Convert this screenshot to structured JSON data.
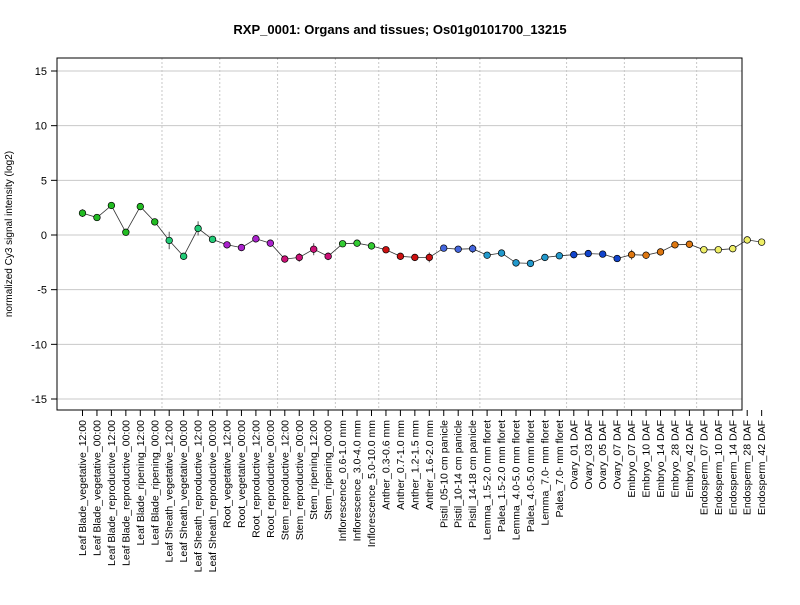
{
  "chart_data": {
    "type": "line",
    "title": "RXP_0001: Organs and tissues; Os01g0101700_13215",
    "ylabel": "normalized Cy3 signal intensity (log2)",
    "xlabel": "",
    "ylim": [
      -15,
      15
    ],
    "yticks": [
      -15,
      -10,
      -5,
      0,
      5,
      10,
      15
    ],
    "grid": {
      "horizontal": true,
      "vertical_group_separators": true
    },
    "categories": [
      "Leaf Blade_vegetative_12:00",
      "Leaf Blade_vegetative_00:00",
      "Leaf Blade_reproductive_12:00",
      "Leaf Blade_reproductive_00:00",
      "Leaf Blade_ripening_12:00",
      "Leaf Blade_ripening_00:00",
      "Leaf Sheath_vegetative_12:00",
      "Leaf Sheath_vegetative_00:00",
      "Leaf Sheath_reproductive_12:00",
      "Leaf Sheath_reproductive_00:00",
      "Root_vegetative_12:00",
      "Root_vegetative_00:00",
      "Root_reproductive_12:00",
      "Root_reproductive_00:00",
      "Stem_reproductive_12:00",
      "Stem_reproductive_00:00",
      "Stem_ripening_12:00",
      "Stem_ripening_00:00",
      "Inflorescence_0.6-1.0 mm",
      "Inflorescence_3.0-4.0 mm",
      "Inflorescence_5.0-10.0 mm",
      "Anther_0.3-0.6 mm",
      "Anther_0.7-1.0 mm",
      "Anther_1.2-1.5 mm",
      "Anther_1.6-2.0 mm",
      "Pistil_05-10 cm panicle",
      "Pistil_10-14 cm panicle",
      "Pistil_14-18 cm panicle",
      "Lemma_1.5-2.0 mm floret",
      "Palea_1.5-2.0 mm floret",
      "Lemma_4.0-5.0 mm floret",
      "Palea_4.0-5.0 mm floret",
      "Lemma_7.0- mm floret",
      "Palea_7.0- mm floret",
      "Ovary_01 DAF",
      "Ovary_03 DAF",
      "Ovary_05 DAF",
      "Ovary_07 DAF",
      "Embryo_07 DAF",
      "Embryo_10 DAF",
      "Embryo_14 DAF",
      "Embryo_28 DAF",
      "Embryo_42 DAF",
      "Endosperm_07 DAF",
      "Endosperm_10 DAF",
      "Endosperm_14 DAF",
      "Endosperm_28 DAF",
      "Endosperm_42 DAF"
    ],
    "values": [
      2.0,
      1.6,
      2.7,
      0.25,
      2.6,
      1.2,
      -0.5,
      -1.95,
      0.6,
      -0.4,
      -0.9,
      -1.15,
      -0.35,
      -0.75,
      -2.2,
      -2.05,
      -1.3,
      -1.95,
      -0.8,
      -0.75,
      -1.0,
      -1.35,
      -1.95,
      -2.05,
      -2.05,
      -1.2,
      -1.3,
      -1.25,
      -1.85,
      -1.65,
      -2.55,
      -2.6,
      -2.05,
      -1.9,
      -1.8,
      -1.7,
      -1.75,
      -2.15,
      -1.8,
      -1.85,
      -1.55,
      -0.9,
      -0.85,
      -1.35,
      -1.35,
      -1.25,
      -0.45,
      -0.65
    ],
    "errors": [
      0.35,
      0.3,
      0.25,
      0.2,
      0.3,
      0.25,
      0.8,
      0.3,
      0.65,
      0.25,
      0.15,
      0.15,
      0.25,
      0.15,
      0.3,
      0.4,
      0.55,
      0.35,
      0.15,
      0.15,
      0.15,
      0.2,
      0.15,
      0.15,
      0.45,
      0.2,
      0.2,
      0.4,
      0.25,
      0.25,
      0.35,
      0.2,
      0.2,
      0.15,
      0.3,
      0.2,
      0.15,
      0.2,
      0.45,
      0.35,
      0.2,
      0.2,
      0.2,
      0.15,
      0.15,
      0.15,
      0.25,
      0.15
    ],
    "colors": [
      "#22bb22",
      "#22bb22",
      "#22bb22",
      "#22bb22",
      "#22bb22",
      "#22bb22",
      "#22cc77",
      "#22cc77",
      "#22cc77",
      "#22cc77",
      "#aa22cc",
      "#aa22cc",
      "#aa22cc",
      "#aa22cc",
      "#cc1177",
      "#cc1177",
      "#cc1177",
      "#cc1177",
      "#33cc33",
      "#33cc33",
      "#33cc33",
      "#cc1111",
      "#cc1111",
      "#cc1111",
      "#cc1111",
      "#4466dd",
      "#4466dd",
      "#4466dd",
      "#2299cc",
      "#2299cc",
      "#2299cc",
      "#2299cc",
      "#2299cc",
      "#2299cc",
      "#1144cc",
      "#1144cc",
      "#1144cc",
      "#1144cc",
      "#dd7711",
      "#dd7711",
      "#dd7711",
      "#dd7711",
      "#dd7711",
      "#eeee66",
      "#eeee66",
      "#eeee66",
      "#eeee66",
      "#eeee66"
    ],
    "group_separators_after_index": [
      5,
      9,
      13,
      17,
      20,
      24,
      27,
      33,
      37,
      42
    ]
  }
}
